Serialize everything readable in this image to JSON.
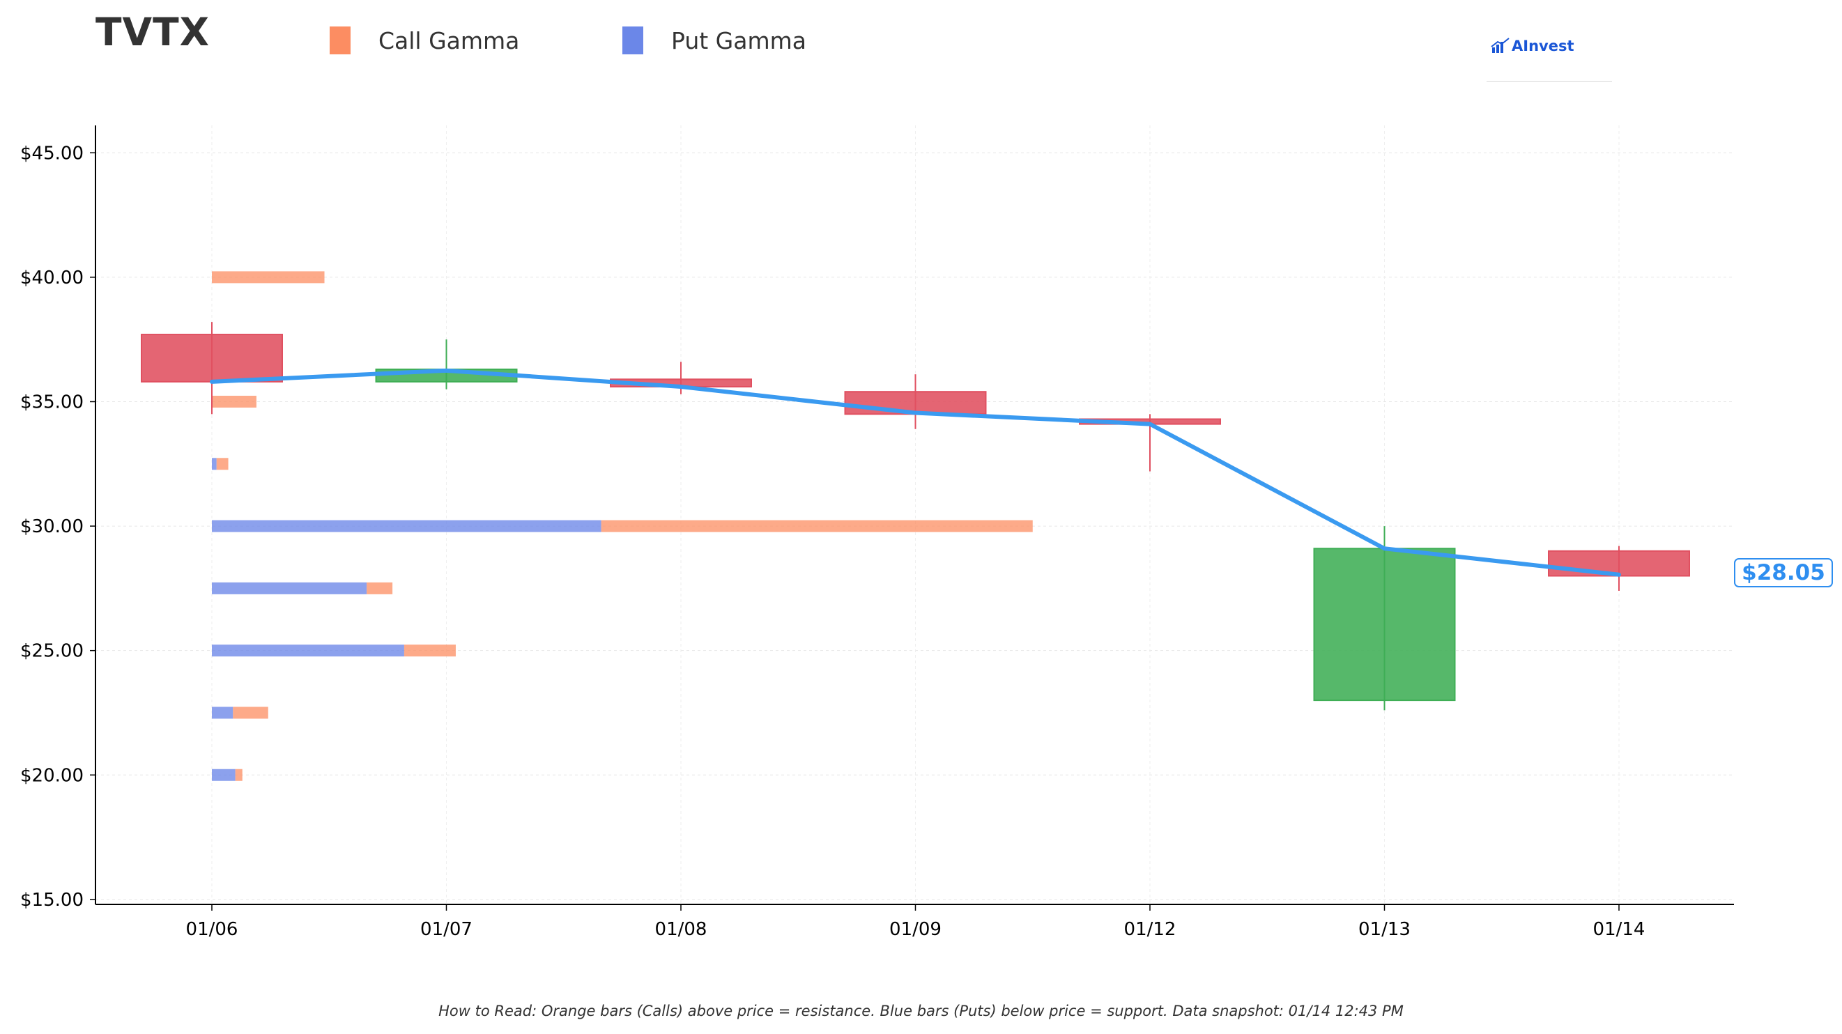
{
  "ticker": "TVTX",
  "legend": {
    "call_label": "Call Gamma",
    "put_label": "Put Gamma"
  },
  "logo_text": "AInvest",
  "footnote": "How to Read: Orange bars (Calls) above price = resistance. Blue bars (Puts) below price = support. Data snapshot: 01/14 12:43 PM",
  "current_price_label": "$28.05",
  "colors": {
    "call": "#fc8d62",
    "put": "#6b87e8",
    "up_candle": "#3fae55",
    "down_candle": "#e05060",
    "price_line": "#3a9af0"
  },
  "chart_data": {
    "type": "candlestick",
    "categories": [
      "01/06",
      "01/07",
      "01/08",
      "01/09",
      "01/12",
      "01/13",
      "01/14"
    ],
    "y_tick_labels": [
      "$15.00",
      "$20.00",
      "$25.00",
      "$30.00",
      "$35.00",
      "$40.00",
      "$45.00"
    ],
    "y_ticks": [
      15,
      20,
      25,
      30,
      35,
      40,
      45
    ],
    "ylim": [
      14.8,
      46.1
    ],
    "grid": true,
    "candles": [
      {
        "date": "01/06",
        "open": 37.7,
        "high": 38.2,
        "low": 34.5,
        "close": 35.8
      },
      {
        "date": "01/07",
        "open": 35.8,
        "high": 37.5,
        "low": 35.5,
        "close": 36.3
      },
      {
        "date": "01/08",
        "open": 35.9,
        "high": 36.6,
        "low": 35.3,
        "close": 35.6
      },
      {
        "date": "01/09",
        "open": 35.4,
        "high": 36.1,
        "low": 33.9,
        "close": 34.5
      },
      {
        "date": "01/12",
        "open": 34.3,
        "high": 34.5,
        "low": 32.2,
        "close": 34.1
      },
      {
        "date": "01/13",
        "open": 23.0,
        "high": 30.0,
        "low": 22.6,
        "close": 29.1
      },
      {
        "date": "01/14",
        "open": 29.0,
        "high": 29.2,
        "low": 27.4,
        "close": 28.0
      }
    ],
    "price_line": [
      {
        "date": "01/06",
        "price": 35.8
      },
      {
        "date": "01/07",
        "price": 36.25
      },
      {
        "date": "01/08",
        "price": 35.6
      },
      {
        "date": "01/09",
        "price": 34.55
      },
      {
        "date": "01/12",
        "price": 34.1
      },
      {
        "date": "01/13",
        "price": 29.1
      },
      {
        "date": "01/14",
        "price": 28.05
      }
    ],
    "gamma_levels_axis": "relative length in category widths, measured from 01/06",
    "gamma_levels": [
      {
        "strike": 40.0,
        "put": 0.0,
        "call": 0.48
      },
      {
        "strike": 35.0,
        "put": 0.0,
        "call": 0.19
      },
      {
        "strike": 32.5,
        "put": 0.02,
        "call": 0.05
      },
      {
        "strike": 30.0,
        "put": 1.66,
        "call": 1.84
      },
      {
        "strike": 27.5,
        "put": 0.66,
        "call": 0.11
      },
      {
        "strike": 25.0,
        "put": 0.82,
        "call": 0.22
      },
      {
        "strike": 22.5,
        "put": 0.09,
        "call": 0.15
      },
      {
        "strike": 20.0,
        "put": 0.1,
        "call": 0.03
      }
    ]
  }
}
